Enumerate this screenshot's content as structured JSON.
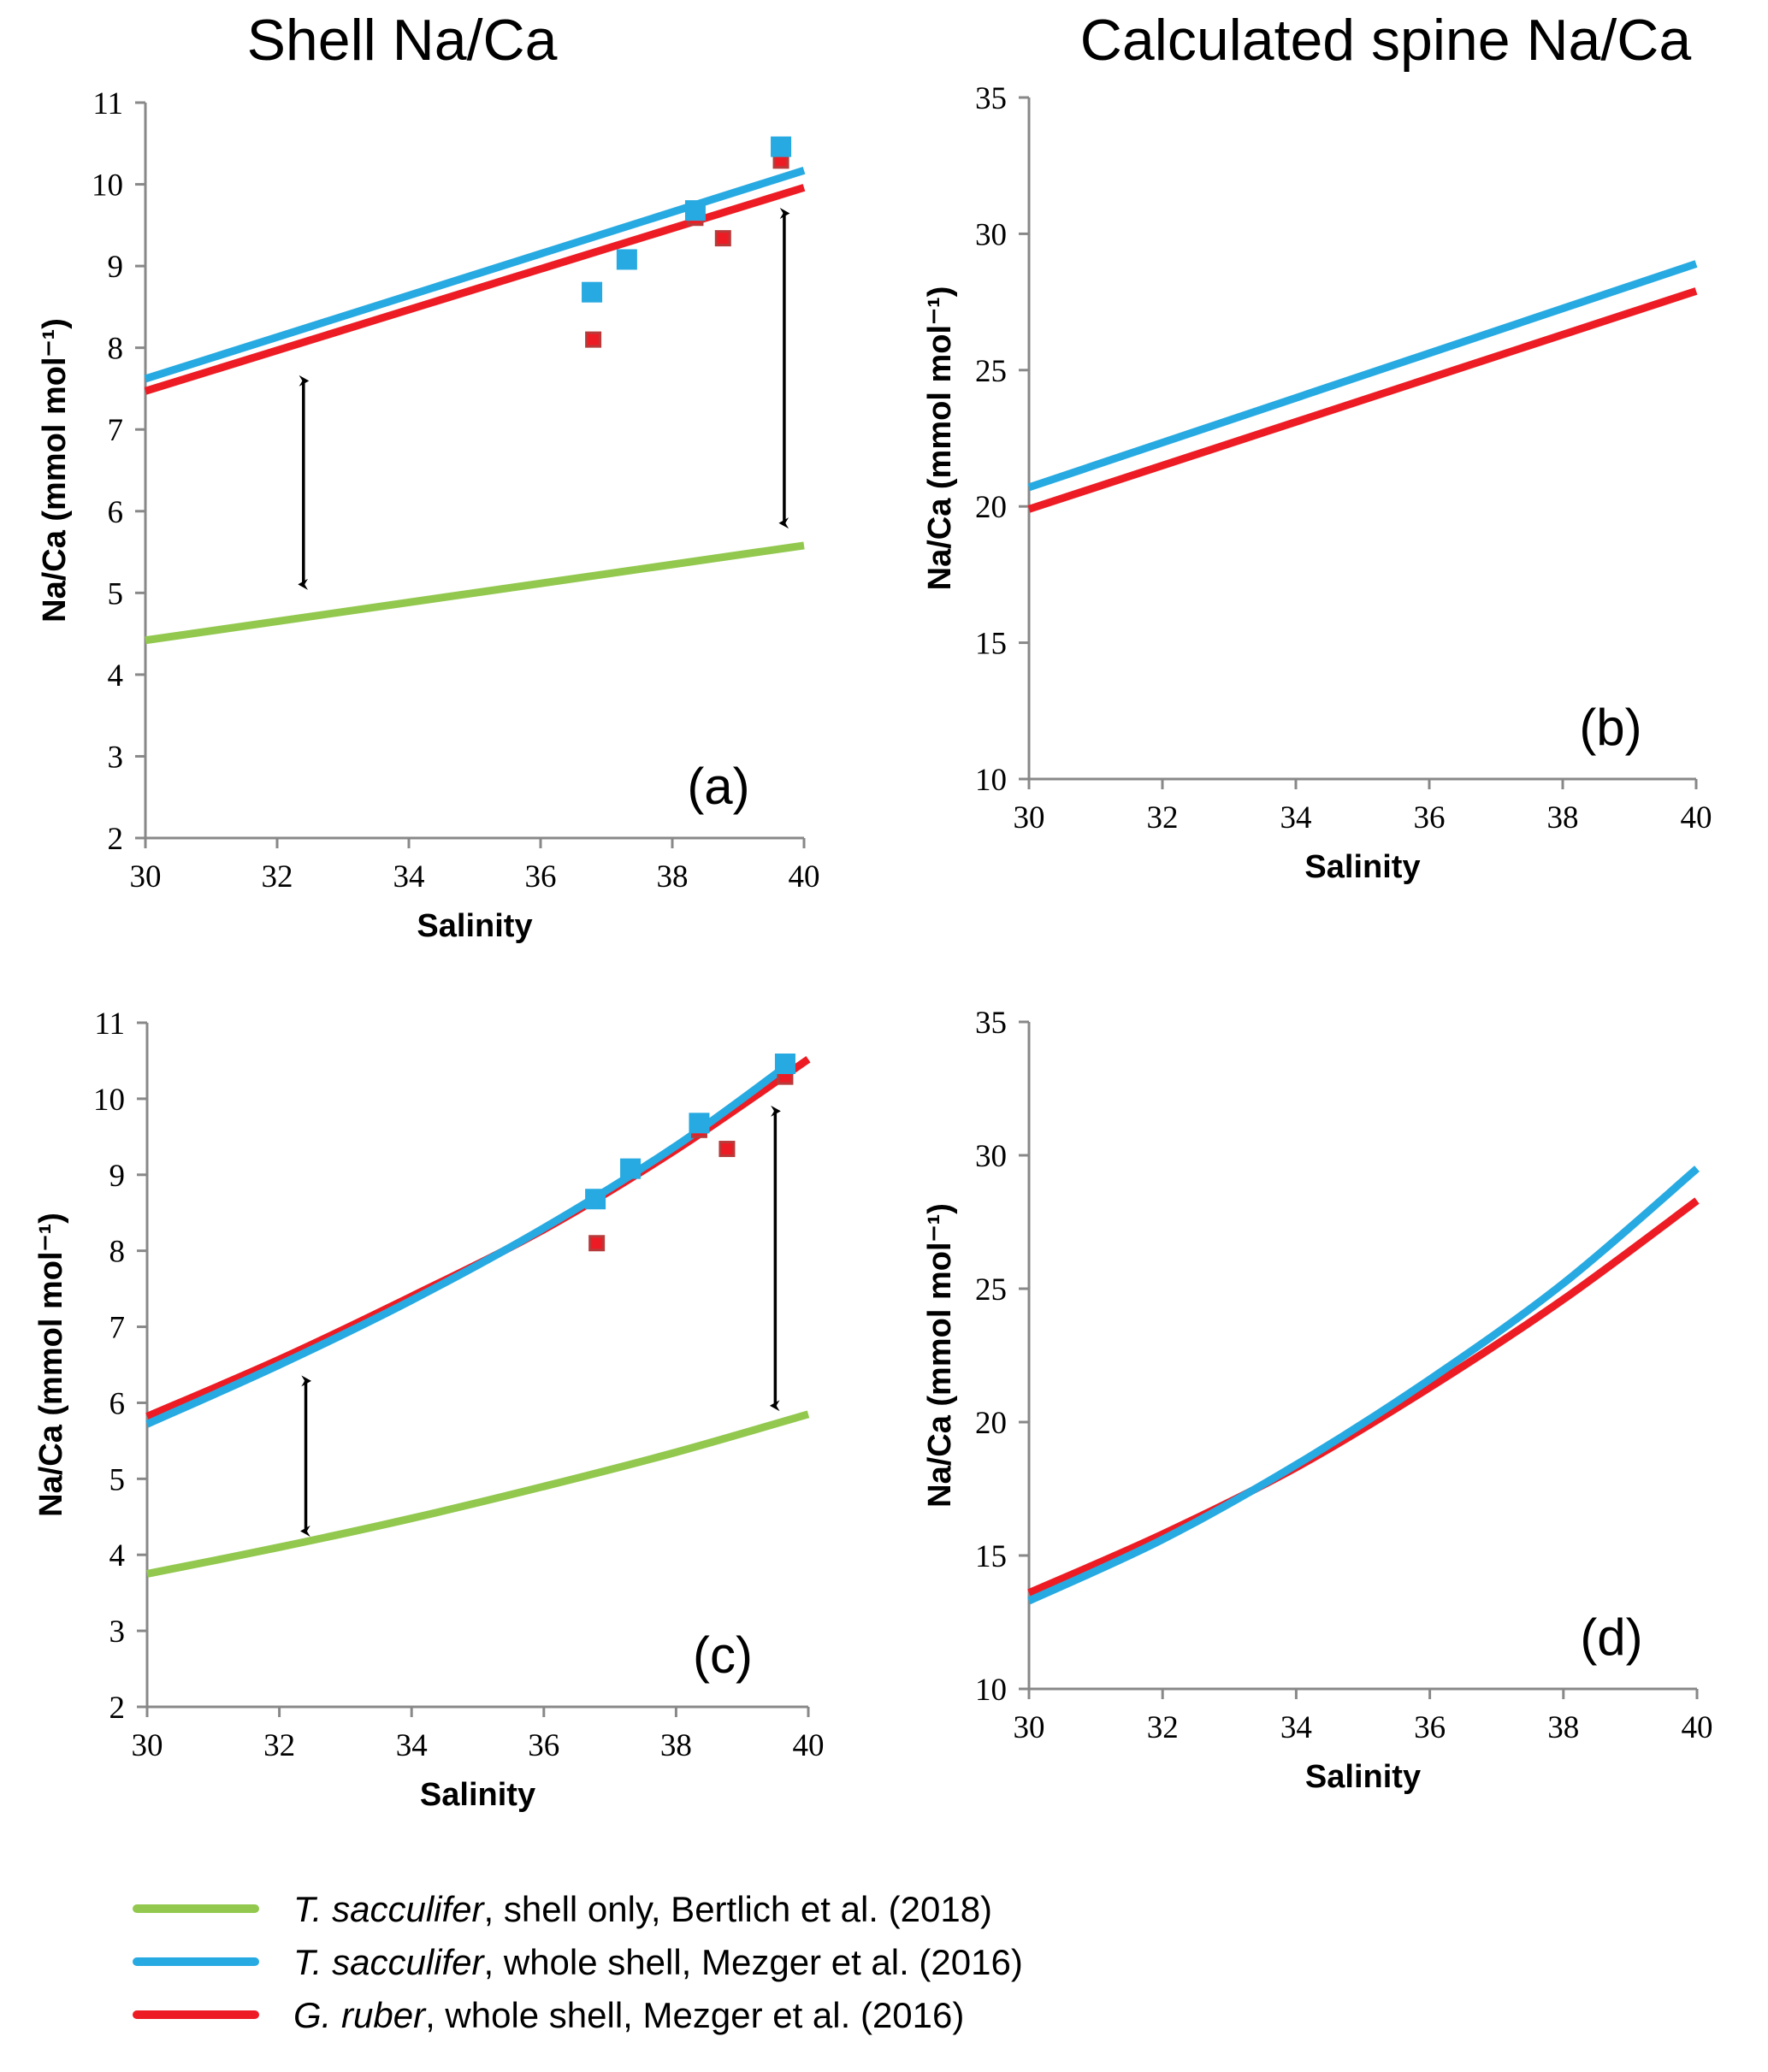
{
  "titles": {
    "left": "Shell Na/Ca",
    "right": "Calculated spine Na/Ca"
  },
  "colors": {
    "green": "#92C84E",
    "blue": "#27AAE1",
    "red": "#ED1C24",
    "red_marker_edge": "#B83A3A"
  },
  "legend": [
    {
      "series": "green",
      "italic": "T. sacculifer",
      "rest": ", shell only, Bertlich et al. (2018)"
    },
    {
      "series": "blue",
      "italic": "T. sacculifer",
      "rest": ", whole shell, Mezger et al. (2016)"
    },
    {
      "series": "red",
      "italic": "G. ruber",
      "rest": ", whole shell, Mezger et al. (2016)"
    }
  ],
  "chart_data": [
    {
      "id": "a",
      "type": "line",
      "panel_label": "(a)",
      "xlabel": "Salinity",
      "ylabel": "Na/Ca (mmol mol⁻¹)",
      "xlim": [
        30,
        40
      ],
      "ylim": [
        2,
        11
      ],
      "xticks": [
        30,
        32,
        34,
        36,
        38,
        40
      ],
      "yticks": [
        2,
        3,
        4,
        5,
        6,
        7,
        8,
        9,
        10,
        11
      ],
      "grid": false,
      "series": [
        {
          "name": "T. sacculifer, shell only, Bertlich et al. (2018)",
          "color": "green",
          "x": [
            30,
            40
          ],
          "y": [
            4.42,
            5.58
          ]
        },
        {
          "name": "T. sacculifer, whole shell, Mezger et al. (2016)",
          "color": "blue",
          "x": [
            30,
            40
          ],
          "y": [
            7.62,
            10.17
          ]
        },
        {
          "name": "G. ruber, whole shell, Mezger et al. (2016)",
          "color": "red",
          "x": [
            30,
            40
          ],
          "y": [
            7.47,
            9.96
          ]
        }
      ],
      "points": [
        {
          "series": "T. sacculifer data",
          "color": "blue",
          "x": [
            36.78,
            37.31,
            38.35,
            39.65
          ],
          "y": [
            8.68,
            9.08,
            9.68,
            10.46
          ]
        },
        {
          "series": "G. ruber data",
          "color": "red",
          "x": [
            36.8,
            38.35,
            38.77,
            39.65
          ],
          "y": [
            8.1,
            9.59,
            9.34,
            10.29
          ]
        }
      ],
      "arrows": [
        {
          "x": 32.4,
          "y_from": 7.7,
          "y_to": 5.0
        },
        {
          "x": 39.7,
          "y_from": 9.75,
          "y_to": 5.75
        }
      ]
    },
    {
      "id": "b",
      "type": "line",
      "panel_label": "(b)",
      "xlabel": "Salinity",
      "ylabel": "Na/Ca (mmol mol⁻¹)",
      "xlim": [
        30,
        40
      ],
      "ylim": [
        10,
        35
      ],
      "xticks": [
        30,
        32,
        34,
        36,
        38,
        40
      ],
      "yticks": [
        10,
        15,
        20,
        25,
        30,
        35
      ],
      "grid": false,
      "series": [
        {
          "name": "T. sacculifer, whole shell, Mezger et al. (2016)",
          "color": "blue",
          "x": [
            30,
            40
          ],
          "y": [
            20.7,
            28.9
          ]
        },
        {
          "name": "G. ruber, whole shell, Mezger et al. (2016)",
          "color": "red",
          "x": [
            30,
            40
          ],
          "y": [
            19.9,
            27.9
          ]
        }
      ],
      "points": [],
      "arrows": []
    },
    {
      "id": "c",
      "type": "line",
      "panel_label": "(c)",
      "xlabel": "Salinity",
      "ylabel": "Na/Ca (mmol mol⁻¹)",
      "xlim": [
        30,
        40
      ],
      "ylim": [
        2,
        11
      ],
      "xticks": [
        30,
        32,
        34,
        36,
        38,
        40
      ],
      "yticks": [
        2,
        3,
        4,
        5,
        6,
        7,
        8,
        9,
        10,
        11
      ],
      "grid": false,
      "series": [
        {
          "name": "T. sacculifer, shell only, Bertlich et al. (2018)",
          "color": "green",
          "x": [
            30,
            32,
            34,
            36,
            38,
            40
          ],
          "y": [
            3.75,
            4.1,
            4.48,
            4.9,
            5.35,
            5.85
          ]
        },
        {
          "name": "T. sacculifer, whole shell, Mezger et al. (2016)",
          "color": "blue",
          "x": [
            30,
            32,
            34,
            36,
            38,
            39.7
          ],
          "y": [
            5.72,
            6.5,
            7.35,
            8.3,
            9.38,
            10.45
          ]
        },
        {
          "name": "G. ruber, whole shell, Mezger et al. (2016)",
          "color": "red",
          "x": [
            30,
            32,
            34,
            36,
            38,
            40
          ],
          "y": [
            5.82,
            6.57,
            7.4,
            8.28,
            9.33,
            10.52
          ]
        }
      ],
      "points": [
        {
          "series": "T. sacculifer data",
          "color": "blue",
          "x": [
            36.78,
            37.31,
            38.35,
            39.65
          ],
          "y": [
            8.68,
            9.08,
            9.68,
            10.46
          ]
        },
        {
          "series": "G. ruber data",
          "color": "red",
          "x": [
            36.8,
            38.35,
            38.77,
            39.65
          ],
          "y": [
            8.1,
            9.59,
            9.34,
            10.29
          ]
        }
      ],
      "arrows": [
        {
          "x": 32.4,
          "y_from": 6.4,
          "y_to": 4.2
        },
        {
          "x": 39.5,
          "y_from": 9.95,
          "y_to": 5.85
        }
      ]
    },
    {
      "id": "d",
      "type": "line",
      "panel_label": "(d)",
      "xlabel": "Salinity",
      "ylabel": "Na/Ca (mmol mol⁻¹)",
      "xlim": [
        30,
        40
      ],
      "ylim": [
        10,
        35
      ],
      "xticks": [
        30,
        32,
        34,
        36,
        38,
        40
      ],
      "yticks": [
        10,
        15,
        20,
        25,
        30,
        35
      ],
      "grid": false,
      "series": [
        {
          "name": "T. sacculifer, whole shell, Mezger et al. (2016)",
          "color": "blue",
          "x": [
            30,
            32,
            34,
            36,
            38,
            40
          ],
          "y": [
            13.3,
            15.6,
            18.4,
            21.6,
            25.2,
            29.5
          ]
        },
        {
          "name": "G. ruber, whole shell, Mezger et al. (2016)",
          "color": "red",
          "x": [
            30,
            32,
            34,
            36,
            38,
            40
          ],
          "y": [
            13.6,
            15.8,
            18.3,
            21.3,
            24.6,
            28.3
          ]
        }
      ],
      "points": [],
      "arrows": []
    }
  ]
}
